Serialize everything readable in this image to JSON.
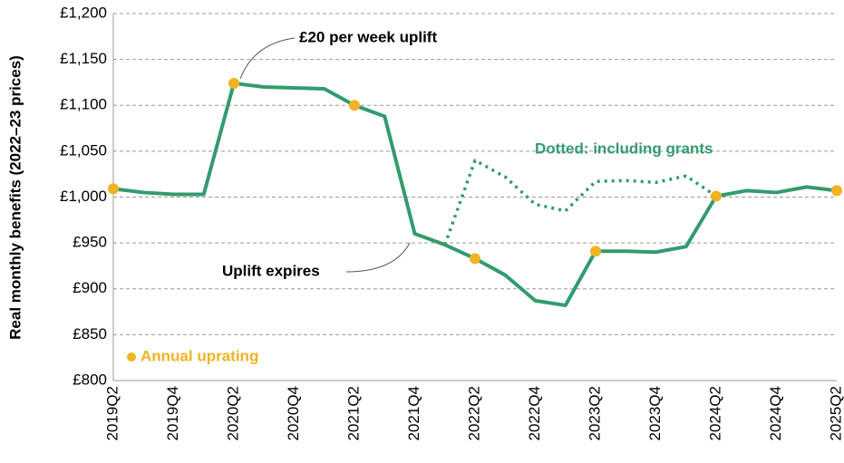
{
  "chart_data": {
    "type": "line",
    "y_axis_label": "Real monthly benefits (2022–23 prices)",
    "categories": [
      "2019Q2",
      null,
      "2019Q4",
      null,
      "2020Q2",
      null,
      "2020Q4",
      null,
      "2021Q2",
      null,
      "2021Q4",
      null,
      "2022Q2",
      null,
      "2022Q4",
      null,
      "2023Q2",
      null,
      "2023Q4",
      null,
      "2024Q2",
      null,
      "2024Q4",
      null,
      "2025Q2"
    ],
    "series": [
      {
        "color": "#339b6e",
        "style": "solid",
        "values": [
          1009,
          1005,
          1003,
          1003,
          1124,
          1120,
          1119,
          1118,
          1100,
          1088,
          960,
          948,
          933,
          915,
          887,
          882,
          941,
          941,
          940,
          946,
          1001,
          1007,
          1005,
          1011,
          1007
        ]
      },
      {
        "name": "Dotted: including grants",
        "color": "#339b6e",
        "style": "dotted",
        "values": [
          null,
          null,
          null,
          null,
          null,
          null,
          null,
          null,
          null,
          null,
          null,
          948,
          1040,
          1022,
          992,
          985,
          1017,
          1018,
          1016,
          1023,
          1001,
          null,
          null,
          null,
          null
        ]
      },
      {
        "name": "Annual uprating",
        "color": "#f0b323",
        "style": "points",
        "values": [
          1009,
          null,
          null,
          null,
          1124,
          null,
          null,
          null,
          1100,
          null,
          null,
          null,
          933,
          null,
          null,
          null,
          941,
          null,
          null,
          null,
          1001,
          null,
          null,
          null,
          1007
        ]
      }
    ],
    "annotations": [
      "£20 per week uplift",
      "Uplift expires"
    ],
    "ylim": [
      800,
      1200
    ],
    "yticks": [
      {
        "value": 800,
        "label": "£800"
      },
      {
        "value": 850,
        "label": "£850"
      },
      {
        "value": 900,
        "label": "£900"
      },
      {
        "value": 950,
        "label": "£950"
      },
      {
        "value": 1000,
        "label": "£1,000"
      },
      {
        "value": 1050,
        "label": "£1,050"
      },
      {
        "value": 1100,
        "label": "£1,100"
      },
      {
        "value": 1150,
        "label": "£1,150"
      },
      {
        "value": 1200,
        "label": "£1,200"
      }
    ],
    "grid": true
  }
}
